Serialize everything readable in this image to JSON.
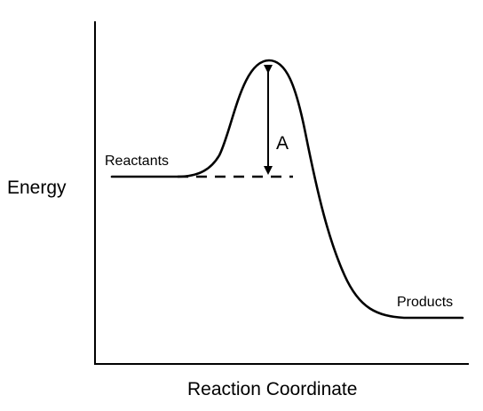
{
  "diagram": {
    "y_axis_label": "Energy",
    "x_axis_label": "Reaction Coordinate",
    "reactants_label": "Reactants",
    "products_label": "Products",
    "activation_label": "A",
    "colors": {
      "line": "#000000",
      "background": "#ffffff"
    }
  }
}
